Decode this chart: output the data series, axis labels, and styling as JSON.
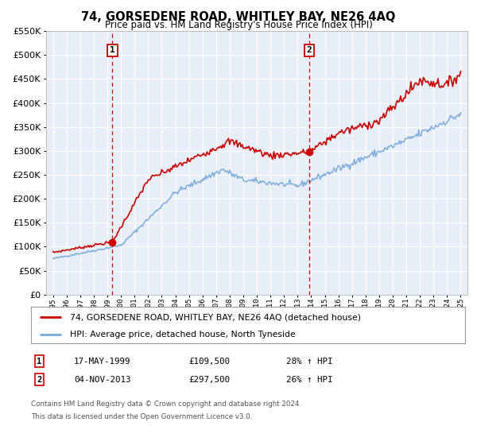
{
  "title": "74, GORSEDENE ROAD, WHITLEY BAY, NE26 4AQ",
  "subtitle": "Price paid vs. HM Land Registry's House Price Index (HPI)",
  "legend_label_red": "74, GORSEDENE ROAD, WHITLEY BAY, NE26 4AQ (detached house)",
  "legend_label_blue": "HPI: Average price, detached house, North Tyneside",
  "transaction1_date": "17-MAY-1999",
  "transaction1_price": "£109,500",
  "transaction1_hpi": "28% ↑ HPI",
  "transaction1_year": 1999.37,
  "transaction1_value": 109500,
  "transaction2_date": "04-NOV-2013",
  "transaction2_price": "£297,500",
  "transaction2_hpi": "26% ↑ HPI",
  "transaction2_year": 2013.84,
  "transaction2_value": 297500,
  "footer1": "Contains HM Land Registry data © Crown copyright and database right 2024.",
  "footer2": "This data is licensed under the Open Government Licence v3.0.",
  "ylim": [
    0,
    550000
  ],
  "yticks": [
    0,
    50000,
    100000,
    150000,
    200000,
    250000,
    300000,
    350000,
    400000,
    450000,
    500000,
    550000
  ],
  "plot_bg_color": "#e8eef8",
  "red_color": "#cc0000",
  "blue_color": "#7aacdc",
  "grid_color": "#ffffff",
  "vline_color": "#cc0000"
}
